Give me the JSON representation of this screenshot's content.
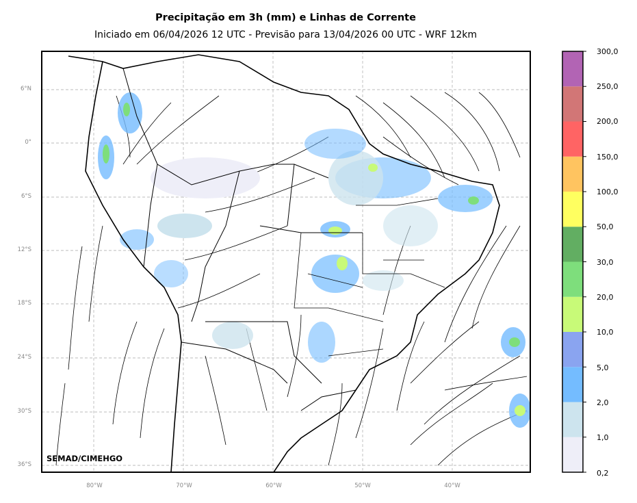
{
  "header": {
    "title": "Precipitação em 3h (mm) e Linhas de Corrente",
    "subtitle": "Iniciado em 06/04/2026 12 UTC - Previsão para 13/04/2026 00 UTC - WRF 12km"
  },
  "map": {
    "lat_ticks": [
      "6°N",
      "0°",
      "6°S",
      "12°S",
      "18°S",
      "24°S",
      "30°S",
      "36°S"
    ],
    "lon_ticks": [
      "80°W",
      "70°W",
      "60°W",
      "50°W",
      "40°W"
    ],
    "credit": "SEMAD/CIMEHGO",
    "gridlines": true,
    "extent": {
      "lon": [
        -86,
        -31
      ],
      "lat": [
        -36.5,
        10
      ]
    }
  },
  "colorbar": {
    "labels": [
      "0,2",
      "1,0",
      "2,0",
      "5,0",
      "10,0",
      "20,0",
      "30,0",
      "50,0",
      "100,0",
      "150,0",
      "200,0",
      "250,0",
      "300,0"
    ],
    "colors": [
      "#eeeef8",
      "#cde4ee",
      "#74bcff",
      "#8aa4f0",
      "#c8fa78",
      "#7ede7c",
      "#62ae62",
      "#ffff60",
      "#ffc460",
      "#ff6464",
      "#d27676",
      "#b264b4"
    ]
  }
}
